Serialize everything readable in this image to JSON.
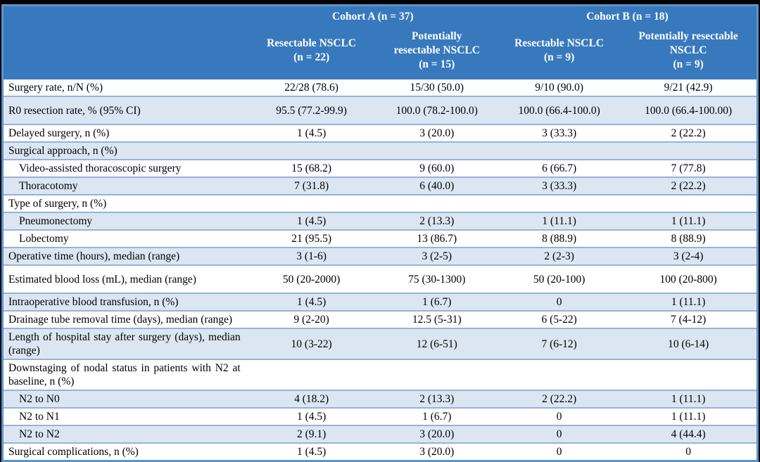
{
  "colors": {
    "header_blue": "#3879bd",
    "row_shade": "#dce6f2",
    "line_blue": "#95b3d7",
    "outer_border": "#5b94cb",
    "frame_black": "#000000"
  },
  "table": {
    "header": {
      "cohort_a": "Cohort A (n = 37)",
      "cohort_b": "Cohort B (n = 18)",
      "columns": [
        "Resectable NSCLC\n(n = 22)",
        "Potentially\nresectable NSCLC\n(n = 15)",
        "Resectable NSCLC\n(n = 9)",
        "Potentially resectable\nNSCLC\n(n = 9)"
      ]
    },
    "rows": [
      {
        "label": "Surgery rate, n/N (%)",
        "indent": false,
        "tall": false,
        "values": [
          "22/28 (78.6)",
          "15/30 (50.0)",
          "9/10 (90.0)",
          "9/21 (42.9)"
        ]
      },
      {
        "label": "R0 resection rate, % (95% CI)",
        "indent": false,
        "tall": true,
        "values": [
          "95.5 (77.2-99.9)",
          "100.0 (78.2-100.0)",
          "100.0 (66.4-100.0)",
          "100.0 (66.4-100.00)"
        ]
      },
      {
        "label": "Delayed surgery, n (%)",
        "indent": false,
        "tall": false,
        "values": [
          "1 (4.5)",
          "3 (20.0)",
          "3 (33.3)",
          "2 (22.2)"
        ]
      },
      {
        "label": "Surgical approach, n (%)",
        "indent": false,
        "tall": false,
        "values": [
          "",
          "",
          "",
          ""
        ]
      },
      {
        "label": "Video-assisted thoracoscopic surgery",
        "indent": true,
        "tall": false,
        "values": [
          "15 (68.2)",
          "9 (60.0)",
          "6 (66.7)",
          "7 (77.8)"
        ]
      },
      {
        "label": "Thoracotomy",
        "indent": true,
        "tall": false,
        "values": [
          "7 (31.8)",
          "6 (40.0)",
          "3 (33.3)",
          "2 (22.2)"
        ]
      },
      {
        "label": "Type of surgery, n (%)",
        "indent": false,
        "tall": false,
        "values": [
          "",
          "",
          "",
          ""
        ]
      },
      {
        "label": "Pneumonectomy",
        "indent": true,
        "tall": false,
        "values": [
          "1 (4.5)",
          "2 (13.3)",
          "1 (11.1)",
          "1 (11.1)"
        ]
      },
      {
        "label": "Lobectomy",
        "indent": true,
        "tall": false,
        "values": [
          "21 (95.5)",
          "13 (86.7)",
          "8 (88.9)",
          "8 (88.9)"
        ]
      },
      {
        "label": "Operative time (hours), median (range)",
        "indent": false,
        "tall": false,
        "values": [
          "3 (1-6)",
          "3 (2-5)",
          "2 (2-3)",
          "3 (2-4)"
        ]
      },
      {
        "label": "Estimated blood loss (mL), median (range)",
        "indent": false,
        "tall": true,
        "values": [
          "50 (20-2000)",
          "75 (30-1300)",
          "50 (20-100)",
          "100 (20-800)"
        ]
      },
      {
        "label": "Intraoperative blood transfusion, n (%)",
        "indent": false,
        "tall": false,
        "values": [
          "1 (4.5)",
          "1 (6.7)",
          "0",
          "1 (11.1)"
        ]
      },
      {
        "label": "Drainage tube removal time (days), median (range)",
        "indent": false,
        "tall": false,
        "values": [
          "9 (2-20)",
          "12.5 (5-31)",
          "6 (5-22)",
          "7 (4-12)"
        ]
      },
      {
        "label": "Length of hospital stay after surgery (days), median (range)",
        "indent": false,
        "tall": false,
        "values": [
          "10 (3-22)",
          "12 (6-51)",
          "7 (6-12)",
          "10 (6-14)"
        ]
      },
      {
        "label": "Downstaging of nodal status in patients with N2 at baseline, n (%)",
        "indent": false,
        "tall": false,
        "values": [
          "",
          "",
          "",
          ""
        ]
      },
      {
        "label": "N2 to N0",
        "indent": true,
        "tall": false,
        "values": [
          "4 (18.2)",
          "2 (13.3)",
          "2 (22.2)",
          "1 (11.1)"
        ]
      },
      {
        "label": "N2 to N1",
        "indent": true,
        "tall": false,
        "values": [
          "1 (4.5)",
          "1 (6.7)",
          "0",
          "1 (11.1)"
        ]
      },
      {
        "label": "N2 to N2",
        "indent": true,
        "tall": false,
        "values": [
          "2 (9.1)",
          "3 (20.0)",
          "0",
          "4 (44.4)"
        ]
      },
      {
        "label": "Surgical complications, n (%)",
        "indent": false,
        "tall": false,
        "values": [
          "1 (4.5)",
          "3 (20.0)",
          "0",
          "0"
        ]
      }
    ]
  }
}
